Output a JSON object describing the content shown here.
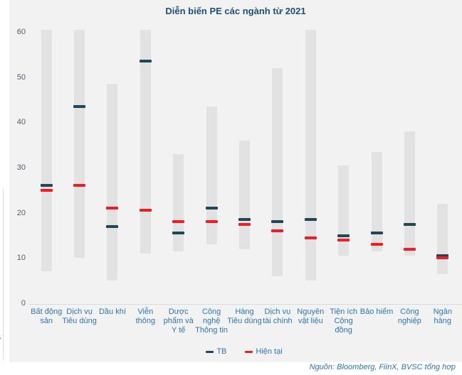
{
  "title": "Diễn biến PE các ngành từ 2021",
  "source": "Nguồn: Bloomberg, FiinX, BVSC tổng hợp",
  "legend": {
    "tb": "TB",
    "current": "Hiện tại"
  },
  "edge_artifact": {
    "partial_tick_text": "6"
  },
  "colors": {
    "panel_bg": "#f2f2f2",
    "bar": "#e2e2e2",
    "tb_marker": "#1f4659",
    "current_marker": "#ee1e23",
    "title_text": "#1f4e79",
    "category_text": "#2e74b5",
    "tick_text": "#4f5b6b",
    "axis_line": "#d9d9d9"
  },
  "chart_data": {
    "type": "bar",
    "subtype": "floating-range-bar",
    "title": "Diễn biến PE các ngành từ 2021",
    "xlabel": "",
    "ylabel": "",
    "ylim": [
      0,
      60
    ],
    "yticks": [
      0,
      10,
      20,
      30,
      40,
      50,
      60
    ],
    "grid": false,
    "legend_position": "bottom-center",
    "legend_entries": [
      "TB",
      "Hiện tại"
    ],
    "categories": [
      "Bất động sản",
      "Dịch vụ Tiêu dùng",
      "Dầu khí",
      "Viễn thông",
      "Dược phẩm và Y tế",
      "Công nghệ Thông tin",
      "Hàng Tiêu dùng",
      "Dịch vụ tài chính",
      "Nguyên vật liệu",
      "Tiện ích Cộng đồng",
      "Bảo hiểm",
      "Công nghiệp",
      "Ngân hàng"
    ],
    "points": [
      {
        "category": "Bất động sản",
        "min": 7,
        "max": 60,
        "max_clipped": true,
        "tb": 26,
        "current": 25
      },
      {
        "category": "Dịch vụ Tiêu dùng",
        "min": 10,
        "max": 60,
        "max_clipped": true,
        "tb": 43.5,
        "current": 26
      },
      {
        "category": "Dầu khí",
        "min": 5,
        "max": 48.5,
        "max_clipped": false,
        "tb": 17,
        "current": 21
      },
      {
        "category": "Viễn thông",
        "min": 11,
        "max": 60,
        "max_clipped": true,
        "tb": 53.5,
        "current": 20.5
      },
      {
        "category": "Dược phẩm và Y tế",
        "min": 11.5,
        "max": 33,
        "max_clipped": false,
        "tb": 15.5,
        "current": 18
      },
      {
        "category": "Công nghệ Thông tin",
        "min": 13,
        "max": 43.5,
        "max_clipped": false,
        "tb": 21,
        "current": 18
      },
      {
        "category": "Hàng Tiêu dùng",
        "min": 12,
        "max": 36,
        "max_clipped": false,
        "tb": 18.5,
        "current": 17.5
      },
      {
        "category": "Dịch vụ tài chính",
        "min": 6,
        "max": 52,
        "max_clipped": false,
        "tb": 18,
        "current": 16
      },
      {
        "category": "Nguyên vật liệu",
        "min": 5,
        "max": 60,
        "max_clipped": true,
        "tb": 18.5,
        "current": 14.5
      },
      {
        "category": "Tiện ích Cộng đồng",
        "min": 10.5,
        "max": 30.5,
        "max_clipped": false,
        "tb": 15,
        "current": 14
      },
      {
        "category": "Bảo hiểm",
        "min": 11.5,
        "max": 33.5,
        "max_clipped": false,
        "tb": 15.5,
        "current": 13
      },
      {
        "category": "Công nghiệp",
        "min": 10.5,
        "max": 38,
        "max_clipped": false,
        "tb": 17.5,
        "current": 12
      },
      {
        "category": "Ngân hàng",
        "min": 6.5,
        "max": 22,
        "max_clipped": false,
        "tb": 10.5,
        "current": 10
      }
    ]
  }
}
